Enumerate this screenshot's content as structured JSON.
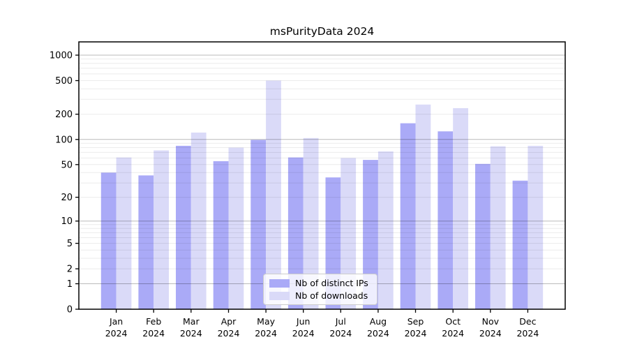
{
  "chart_data": {
    "type": "bar",
    "title": "msPurityData 2024",
    "year_label": "2024",
    "categories": [
      "Jan",
      "Feb",
      "Mar",
      "Apr",
      "May",
      "Jun",
      "Jul",
      "Aug",
      "Sep",
      "Oct",
      "Nov",
      "Dec"
    ],
    "series": [
      {
        "name": "Nb of distinct IPs",
        "color": "#aaaaf7",
        "values": [
          40,
          37,
          84,
          55,
          99,
          61,
          35,
          57,
          156,
          125,
          51,
          32
        ]
      },
      {
        "name": "Nb of downloads",
        "color": "#dadaf8",
        "values": [
          61,
          74,
          121,
          80,
          500,
          104,
          60,
          72,
          260,
          236,
          83,
          84
        ]
      }
    ],
    "yscale": "log1p",
    "yticks": [
      0,
      1,
      2,
      5,
      10,
      20,
      50,
      100,
      200,
      500,
      1000
    ],
    "ylim": [
      0,
      1430
    ],
    "xlabel": "",
    "ylabel": "",
    "grid": "on",
    "legend_position": "lower-center-inside"
  }
}
